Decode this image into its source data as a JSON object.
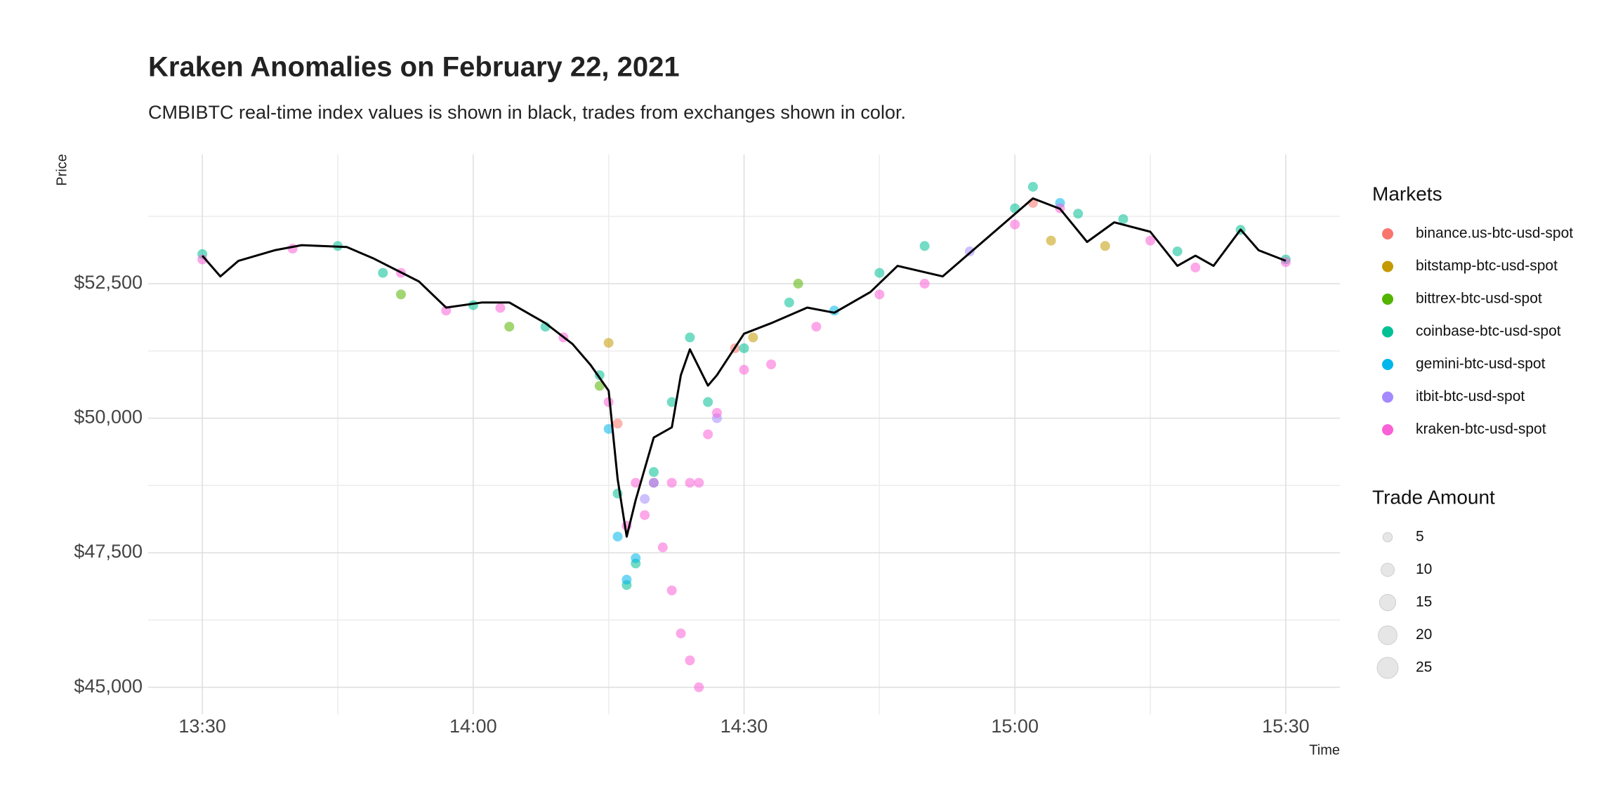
{
  "chart_data": {
    "type": "scatter",
    "title": "Kraken Anomalies on February 22, 2021",
    "subtitle": "CMBIBTC real-time index values is shown in black, trades from exchanges shown in color.",
    "xlabel": "Time",
    "ylabel": "Price",
    "xlim": [
      "13:24",
      "15:36"
    ],
    "xticks": [
      "13:30",
      "14:00",
      "14:30",
      "15:00",
      "15:30"
    ],
    "xminor": [
      "13:45",
      "14:15",
      "14:45",
      "15:15"
    ],
    "ylim": [
      44500,
      54900
    ],
    "yticks": [
      {
        "value": 45000,
        "label": "$45,000"
      },
      {
        "value": 47500,
        "label": "$47,500"
      },
      {
        "value": 50000,
        "label": "$50,000"
      },
      {
        "value": 52500,
        "label": "$52,500"
      }
    ],
    "yminor": [
      46250,
      48750,
      51250,
      53750
    ],
    "grid": true,
    "legend_title": "Markets",
    "size_legend": {
      "title": "Trade Amount",
      "values": [
        5,
        10,
        15,
        20,
        25
      ]
    },
    "index_line": {
      "color": "#000000",
      "x": [
        "13:30",
        "13:32",
        "13:34",
        "13:38",
        "13:41",
        "13:46",
        "13:49",
        "13:54",
        "13:57",
        "14:01",
        "14:04",
        "14:08",
        "14:11",
        "14:13",
        "14:15",
        "14:16",
        "14:17",
        "14:18",
        "14:20",
        "14:22",
        "14:23",
        "14:24",
        "14:26",
        "14:27",
        "14:30",
        "14:33",
        "14:37",
        "14:40",
        "14:44",
        "14:47",
        "14:52",
        "14:56",
        "15:00",
        "15:02",
        "15:05",
        "15:08",
        "15:11",
        "15:15",
        "15:18",
        "15:20",
        "15:22",
        "15:25",
        "15:27",
        "15:30"
      ],
      "values": [
        53020,
        52635,
        52925,
        53120,
        53215,
        53180,
        52965,
        52540,
        52055,
        52150,
        52150,
        51765,
        51380,
        50990,
        50510,
        48870,
        47800,
        48480,
        49640,
        49830,
        50800,
        51280,
        50605,
        50800,
        51570,
        51765,
        52055,
        51960,
        52345,
        52830,
        52635,
        53215,
        53795,
        54085,
        53890,
        53275,
        53640,
        53465,
        52830,
        53020,
        52830,
        53505,
        53120,
        52925
      ]
    },
    "series": [
      {
        "name": "binance.us-btc-usd-spot",
        "color": "#F8766D",
        "x": [
          "14:16",
          "14:29",
          "15:02"
        ],
        "values": [
          49900,
          51300,
          54000
        ]
      },
      {
        "name": "bitstamp-btc-usd-spot",
        "color": "#C49A00",
        "x": [
          "14:15",
          "14:31",
          "15:04",
          "15:10"
        ],
        "values": [
          51400,
          51500,
          53300,
          53200
        ]
      },
      {
        "name": "bittrex-btc-usd-spot",
        "color": "#53B400",
        "x": [
          "13:52",
          "14:04",
          "14:14",
          "14:36"
        ],
        "values": [
          52300,
          51700,
          50600,
          52500
        ]
      },
      {
        "name": "coinbase-btc-usd-spot",
        "color": "#00C094",
        "x": [
          "13:30",
          "13:45",
          "13:50",
          "14:00",
          "14:08",
          "14:14",
          "14:16",
          "14:17",
          "14:18",
          "14:20",
          "14:22",
          "14:24",
          "14:26",
          "14:30",
          "14:35",
          "14:45",
          "14:50",
          "15:00",
          "15:02",
          "15:07",
          "15:12",
          "15:18",
          "15:25",
          "15:30"
        ],
        "values": [
          53050,
          53200,
          52700,
          52100,
          51700,
          50800,
          48600,
          46900,
          47300,
          49000,
          50300,
          51500,
          50300,
          51300,
          52150,
          52700,
          53200,
          53900,
          54300,
          53800,
          53700,
          53100,
          53500,
          52950
        ]
      },
      {
        "name": "gemini-btc-usd-spot",
        "color": "#00B6EB",
        "x": [
          "14:15",
          "14:16",
          "14:17",
          "14:18",
          "14:20",
          "14:40",
          "15:05"
        ],
        "values": [
          49800,
          47800,
          47000,
          47400,
          48800,
          52000,
          54000
        ]
      },
      {
        "name": "itbit-btc-usd-spot",
        "color": "#A58AFF",
        "x": [
          "14:19",
          "14:27",
          "14:55"
        ],
        "values": [
          48500,
          50000,
          53100
        ]
      },
      {
        "name": "kraken-btc-usd-spot",
        "color": "#FB61D7",
        "x": [
          "13:30",
          "13:40",
          "13:52",
          "13:57",
          "14:03",
          "14:10",
          "14:15",
          "14:17",
          "14:18",
          "14:19",
          "14:20",
          "14:21",
          "14:22",
          "14:22",
          "14:23",
          "14:24",
          "14:25",
          "14:24",
          "14:25",
          "14:26",
          "14:27",
          "14:30",
          "14:33",
          "14:38",
          "14:45",
          "14:50",
          "15:00",
          "15:05",
          "15:15",
          "15:20",
          "15:30"
        ],
        "values": [
          52950,
          53150,
          52700,
          52000,
          52050,
          51500,
          50300,
          48000,
          48800,
          48200,
          48800,
          47600,
          48800,
          46800,
          46000,
          45500,
          45000,
          48800,
          48800,
          49700,
          50100,
          50900,
          51000,
          51700,
          52300,
          52500,
          53600,
          53900,
          53300,
          52800,
          52900
        ]
      }
    ]
  }
}
